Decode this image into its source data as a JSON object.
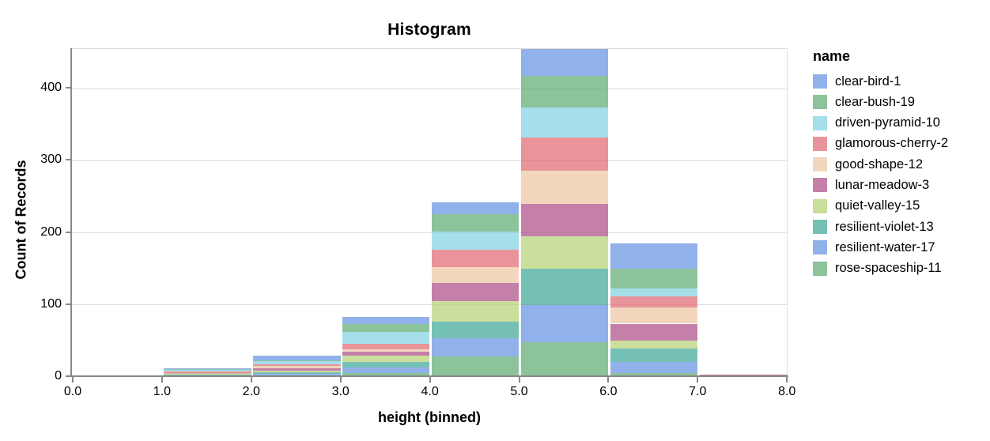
{
  "chart_data": {
    "type": "bar",
    "variant": "stacked-histogram",
    "title": "Histogram",
    "xlabel": "height (binned)",
    "ylabel": "Count of Records",
    "legend_title": "name",
    "legend_position": "right",
    "grid": true,
    "stack_order": "first-series-on-top",
    "bin_edges": [
      0,
      1,
      2,
      3,
      4,
      5,
      6,
      7,
      8
    ],
    "x_tick_labels": [
      "0.0",
      "1.0",
      "2.0",
      "3.0",
      "4.0",
      "5.0",
      "6.0",
      "7.0",
      "8.0"
    ],
    "y_ticks": [
      0,
      100,
      200,
      300,
      400
    ],
    "ylim": [
      0,
      455
    ],
    "bin_totals": [
      2,
      12,
      30,
      83,
      242,
      455,
      185,
      3
    ],
    "bar_opacity": 0.7,
    "series": [
      {
        "name": "clear-bird-1",
        "color": "#6390e1",
        "values": [
          0,
          1,
          7,
          10,
          16,
          37,
          35,
          0
        ]
      },
      {
        "name": "clear-bush-19",
        "color": "#5ba970",
        "values": [
          0,
          1,
          1,
          10,
          24,
          44,
          27,
          0
        ]
      },
      {
        "name": "driven-pyramid-10",
        "color": "#7ed1e1",
        "values": [
          0,
          2,
          4,
          17,
          26,
          42,
          11,
          0
        ]
      },
      {
        "name": "glamorous-cherry-2",
        "color": "#df666f",
        "values": [
          0,
          2,
          3,
          8,
          24,
          46,
          15,
          0
        ]
      },
      {
        "name": "good-shape-12",
        "color": "#edc4a1",
        "values": [
          0,
          1,
          3,
          3,
          22,
          46,
          23,
          0
        ]
      },
      {
        "name": "lunar-meadow-3",
        "color": "#ab4a83",
        "values": [
          0,
          1,
          3,
          5,
          25,
          45,
          24,
          1
        ]
      },
      {
        "name": "quiet-valley-15",
        "color": "#b5d174",
        "values": [
          2,
          1,
          2,
          9,
          28,
          45,
          11,
          0
        ]
      },
      {
        "name": "resilient-violet-13",
        "color": "#3ba594",
        "values": [
          0,
          1,
          3,
          8,
          23,
          50,
          18,
          0
        ]
      },
      {
        "name": "resilient-water-17",
        "color": "#6390e1",
        "values": [
          0,
          1,
          2,
          7,
          26,
          52,
          15,
          2
        ]
      },
      {
        "name": "rose-spaceship-11",
        "color": "#5ba970",
        "values": [
          0,
          1,
          2,
          6,
          28,
          48,
          6,
          0
        ]
      }
    ],
    "axis_colors": {
      "domain": "#888888",
      "grid": "#dddddd",
      "view_border": "#dddddd",
      "text": "#000000"
    }
  }
}
